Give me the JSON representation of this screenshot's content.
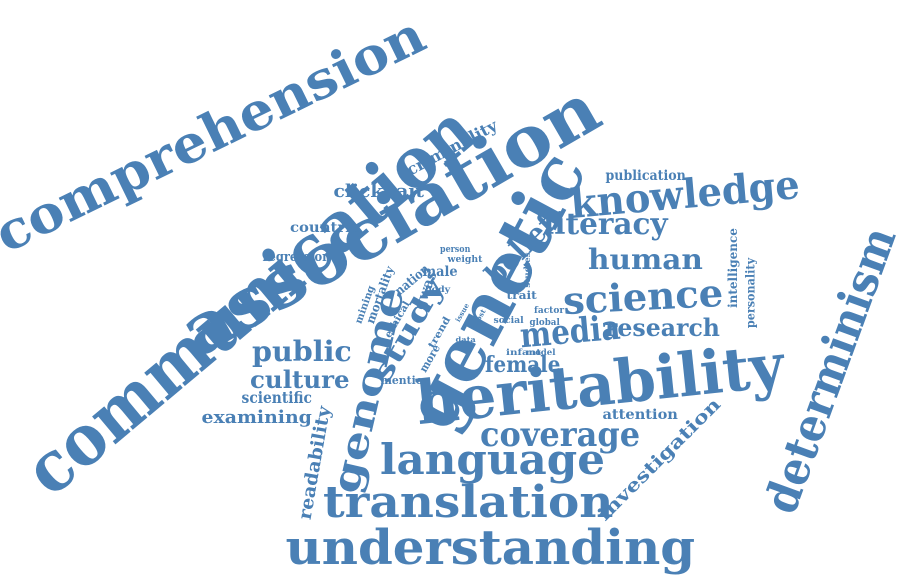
{
  "colors": {
    "word": "#4a80b5",
    "background": "#ffffff"
  },
  "words": [
    "communication",
    "comprehension",
    "association",
    "genetic",
    "heritability",
    "understanding",
    "determinism",
    "knowledge",
    "translation",
    "language",
    "science",
    "genome",
    "coverage",
    "literacy",
    "human",
    "media",
    "research",
    "public",
    "belief",
    "study",
    "culture",
    "female",
    "criminality",
    "clickbait",
    "investigation",
    "readability",
    "examining",
    "scientific",
    "publication",
    "countrie",
    "regression",
    "attention",
    "intelligence",
    "personality",
    "gwas",
    "nation",
    "mortality",
    "mining",
    "male",
    "ethical",
    "mention",
    "more",
    "trend",
    "person",
    "weight",
    "body",
    "issue",
    "trait",
    "factor",
    "social",
    "global",
    "studies",
    "infant",
    "model",
    "data",
    "most"
  ]
}
